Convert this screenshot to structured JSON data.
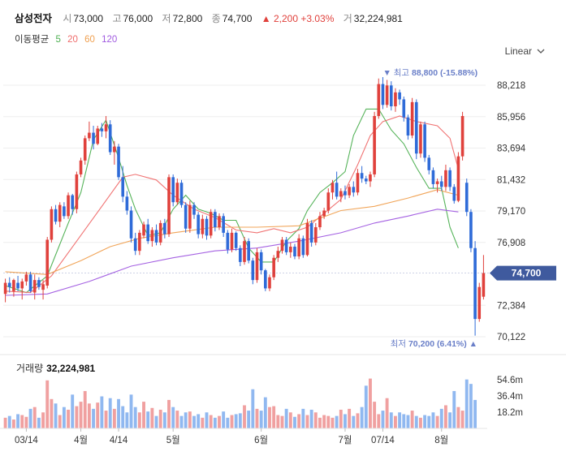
{
  "header": {
    "name": "삼성전자",
    "open_label": "시",
    "open": "73,000",
    "high_label": "고",
    "high": "76,000",
    "low_label": "저",
    "low": "72,800",
    "close_label": "종",
    "close": "74,700",
    "change_arrow": "▲",
    "change": "2,200",
    "change_pct": "+3.03%",
    "volume_label": "거",
    "volume": "32,224,981"
  },
  "moving_avg": {
    "label": "이동평균",
    "items": [
      {
        "period": "5",
        "color": "#4caf50"
      },
      {
        "period": "20",
        "color": "#ef6b6b"
      },
      {
        "period": "60",
        "color": "#f0a050"
      },
      {
        "period": "120",
        "color": "#a05ae0"
      }
    ]
  },
  "scale_selector": {
    "label": "Linear"
  },
  "chart_data": {
    "type": "candlestick",
    "y_ticks": [
      "88,218",
      "85,956",
      "83,694",
      "81,432",
      "79,170",
      "76,908",
      "74,700",
      "72,384",
      "70,122"
    ],
    "ylim": [
      70122,
      88218
    ],
    "current_price": "74,700",
    "current_price_value": 74700,
    "max_marker": {
      "label": "최고",
      "value": "88,800",
      "pct": "(-15.88%)",
      "arrow": "▼",
      "value_num": 88800
    },
    "min_marker": {
      "label": "최저",
      "value": "70,200",
      "pct": "(6.41%)",
      "arrow": "▲",
      "value_num": 70200
    },
    "x_labels": [
      {
        "label": "03/14",
        "index": 5
      },
      {
        "label": "4월",
        "index": 18
      },
      {
        "label": "4/14",
        "index": 27
      },
      {
        "label": "5월",
        "index": 40
      },
      {
        "label": "6월",
        "index": 61
      },
      {
        "label": "7월",
        "index": 81
      },
      {
        "label": "07/14",
        "index": 90
      },
      {
        "label": "8월",
        "index": 104
      }
    ],
    "series": [
      {
        "name": "MA5",
        "color": "#4caf50",
        "points": [
          [
            0,
            73.8
          ],
          [
            5,
            73.3
          ],
          [
            10,
            74.5
          ],
          [
            15,
            78.3
          ],
          [
            18,
            80.5
          ],
          [
            21,
            84.3
          ],
          [
            24,
            85.7
          ],
          [
            27,
            83.0
          ],
          [
            29,
            81.0
          ],
          [
            31,
            79.3
          ],
          [
            34,
            77.4
          ],
          [
            37,
            77.6
          ],
          [
            40,
            79.3
          ],
          [
            43,
            80.3
          ],
          [
            46,
            79.3
          ],
          [
            49,
            79.0
          ],
          [
            52,
            78.5
          ],
          [
            55,
            78.5
          ],
          [
            58,
            76.5
          ],
          [
            61,
            75.5
          ],
          [
            64,
            75.5
          ],
          [
            67,
            77.0
          ],
          [
            70,
            77.9
          ],
          [
            72,
            79.2
          ],
          [
            75,
            80.5
          ],
          [
            78,
            81.2
          ],
          [
            81,
            82.0
          ],
          [
            83,
            84.6
          ],
          [
            86,
            86.5
          ],
          [
            89,
            86.5
          ],
          [
            92,
            85.0
          ],
          [
            95,
            84.0
          ],
          [
            98,
            82.3
          ],
          [
            101,
            80.8
          ],
          [
            104,
            80.8
          ],
          [
            106,
            78.0
          ],
          [
            108,
            76.5
          ]
        ]
      },
      {
        "name": "MA20",
        "color": "#ef6b6b",
        "points": [
          [
            0,
            73.4
          ],
          [
            6,
            73.3
          ],
          [
            11,
            74.5
          ],
          [
            17,
            77.0
          ],
          [
            23,
            79.5
          ],
          [
            28,
            81.6
          ],
          [
            31,
            81.8
          ],
          [
            36,
            81.4
          ],
          [
            40,
            80.3
          ],
          [
            45,
            79.3
          ],
          [
            50,
            78.7
          ],
          [
            55,
            77.8
          ],
          [
            60,
            77.6
          ],
          [
            64,
            77.9
          ],
          [
            68,
            77.6
          ],
          [
            72,
            78.0
          ],
          [
            76,
            79.0
          ],
          [
            80,
            80.0
          ],
          [
            84,
            82.5
          ],
          [
            87,
            84.6
          ],
          [
            90,
            85.6
          ],
          [
            94,
            86.0
          ],
          [
            98,
            85.6
          ],
          [
            103,
            85.3
          ],
          [
            106,
            84.4
          ],
          [
            108,
            82.2
          ]
        ]
      },
      {
        "name": "MA60",
        "color": "#f0a050",
        "points": [
          [
            0,
            74.8
          ],
          [
            10,
            74.6
          ],
          [
            18,
            75.6
          ],
          [
            25,
            76.6
          ],
          [
            32,
            77.2
          ],
          [
            40,
            77.6
          ],
          [
            50,
            78.0
          ],
          [
            60,
            78.0
          ],
          [
            70,
            78.1
          ],
          [
            80,
            79.2
          ],
          [
            88,
            79.5
          ],
          [
            96,
            80.1
          ],
          [
            103,
            80.7
          ],
          [
            108,
            80.3
          ]
        ]
      },
      {
        "name": "MA120",
        "color": "#a05ae0",
        "points": [
          [
            0,
            73.1
          ],
          [
            10,
            73.2
          ],
          [
            20,
            74.1
          ],
          [
            30,
            75.2
          ],
          [
            40,
            75.8
          ],
          [
            50,
            76.3
          ],
          [
            60,
            76.5
          ],
          [
            70,
            77.0
          ],
          [
            80,
            77.6
          ],
          [
            88,
            78.3
          ],
          [
            96,
            78.8
          ],
          [
            103,
            79.3
          ],
          [
            108,
            79.1
          ]
        ]
      }
    ],
    "candles": [
      [
        73.2,
        74.3,
        72.6,
        74.0
      ],
      [
        74.0,
        74.4,
        73.3,
        73.7
      ],
      [
        73.4,
        74.3,
        73.0,
        74.2
      ],
      [
        74.0,
        74.5,
        73.4,
        73.6
      ],
      [
        73.6,
        74.3,
        72.8,
        74.1
      ],
      [
        74.1,
        74.8,
        73.8,
        74.6
      ],
      [
        74.6,
        74.8,
        73.3,
        73.4
      ],
      [
        73.3,
        74.6,
        72.8,
        74.2
      ],
      [
        74.2,
        74.4,
        73.5,
        73.7
      ],
      [
        73.5,
        74.2,
        72.8,
        73.9
      ],
      [
        73.8,
        77.3,
        73.6,
        77.1
      ],
      [
        77.1,
        79.5,
        76.9,
        79.3
      ],
      [
        79.3,
        79.6,
        78.2,
        78.4
      ],
      [
        78.4,
        79.8,
        78.0,
        79.6
      ],
      [
        79.5,
        79.8,
        78.6,
        78.8
      ],
      [
        78.8,
        80.5,
        78.6,
        80.3
      ],
      [
        80.3,
        80.4,
        78.9,
        79.3
      ],
      [
        79.3,
        82.0,
        79.0,
        81.8
      ],
      [
        81.8,
        83.0,
        81.6,
        82.8
      ],
      [
        82.8,
        84.6,
        82.5,
        84.4
      ],
      [
        84.4,
        85.6,
        84.2,
        84.8
      ],
      [
        84.8,
        85.3,
        83.6,
        84.0
      ],
      [
        84.0,
        85.3,
        83.9,
        85.1
      ],
      [
        85.1,
        85.5,
        84.5,
        84.9
      ],
      [
        84.9,
        86.0,
        84.4,
        85.4
      ],
      [
        85.4,
        85.7,
        83.2,
        83.4
      ],
      [
        83.4,
        84.2,
        82.5,
        83.8
      ],
      [
        83.8,
        84.0,
        81.4,
        81.6
      ],
      [
        81.6,
        82.4,
        79.8,
        80.2
      ],
      [
        80.2,
        80.6,
        78.9,
        79.2
      ],
      [
        79.2,
        79.5,
        76.9,
        77.2
      ],
      [
        77.2,
        77.6,
        76.0,
        76.3
      ],
      [
        76.3,
        77.8,
        76.0,
        77.6
      ],
      [
        77.4,
        78.4,
        77.2,
        78.2
      ],
      [
        78.2,
        78.6,
        76.8,
        77.0
      ],
      [
        77.0,
        78.0,
        76.6,
        77.8
      ],
      [
        77.8,
        78.2,
        76.7,
        76.9
      ],
      [
        76.9,
        78.5,
        76.7,
        78.3
      ],
      [
        78.3,
        78.6,
        77.2,
        77.5
      ],
      [
        77.5,
        81.8,
        77.3,
        81.6
      ],
      [
        81.6,
        81.8,
        79.5,
        79.8
      ],
      [
        79.8,
        81.5,
        79.6,
        81.2
      ],
      [
        81.2,
        81.4,
        79.4,
        79.6
      ],
      [
        79.6,
        79.8,
        77.6,
        77.9
      ],
      [
        77.9,
        79.9,
        77.6,
        79.6
      ],
      [
        79.6,
        79.8,
        78.6,
        78.9
      ],
      [
        78.9,
        79.1,
        77.2,
        77.5
      ],
      [
        77.5,
        78.9,
        77.2,
        78.6
      ],
      [
        78.6,
        78.8,
        77.1,
        77.4
      ],
      [
        77.4,
        79.3,
        77.2,
        79.1
      ],
      [
        79.1,
        79.3,
        77.7,
        78.0
      ],
      [
        78.0,
        79.0,
        77.8,
        78.8
      ],
      [
        78.8,
        79.0,
        77.3,
        77.6
      ],
      [
        77.6,
        77.8,
        76.1,
        76.4
      ],
      [
        76.4,
        77.9,
        76.2,
        77.6
      ],
      [
        77.6,
        77.7,
        76.3,
        76.5
      ],
      [
        76.5,
        76.7,
        75.2,
        75.5
      ],
      [
        75.5,
        77.3,
        75.3,
        77.0
      ],
      [
        77.0,
        77.2,
        75.4,
        75.6
      ],
      [
        75.6,
        75.8,
        73.9,
        74.2
      ],
      [
        74.2,
        76.5,
        74.0,
        76.2
      ],
      [
        76.2,
        76.4,
        74.6,
        74.9
      ],
      [
        74.9,
        75.0,
        73.4,
        73.6
      ],
      [
        73.6,
        74.6,
        73.4,
        74.4
      ],
      [
        74.4,
        76.0,
        74.2,
        75.8
      ],
      [
        75.8,
        76.6,
        75.5,
        76.3
      ],
      [
        76.3,
        77.3,
        76.1,
        77.1
      ],
      [
        77.1,
        77.3,
        76.0,
        76.2
      ],
      [
        76.2,
        76.9,
        75.8,
        76.6
      ],
      [
        76.6,
        76.8,
        75.7,
        75.9
      ],
      [
        75.9,
        77.5,
        75.7,
        77.2
      ],
      [
        77.2,
        77.4,
        75.8,
        76.0
      ],
      [
        76.0,
        78.6,
        75.9,
        78.3
      ],
      [
        78.3,
        78.5,
        76.6,
        76.9
      ],
      [
        76.9,
        78.3,
        76.7,
        78.0
      ],
      [
        78.0,
        79.1,
        77.8,
        78.8
      ],
      [
        78.8,
        79.4,
        78.6,
        79.2
      ],
      [
        79.2,
        80.8,
        79.0,
        80.5
      ],
      [
        80.5,
        81.4,
        80.0,
        81.2
      ],
      [
        81.2,
        82.0,
        80.0,
        80.2
      ],
      [
        80.2,
        80.8,
        79.8,
        80.6
      ],
      [
        80.6,
        81.0,
        80.0,
        80.3
      ],
      [
        80.3,
        81.1,
        80.1,
        80.9
      ],
      [
        80.9,
        81.3,
        80.2,
        80.5
      ],
      [
        80.5,
        82.2,
        80.3,
        81.9
      ],
      [
        81.9,
        82.4,
        81.2,
        81.5
      ],
      [
        81.5,
        81.7,
        81.1,
        81.3
      ],
      [
        81.3,
        82.0,
        80.9,
        81.8
      ],
      [
        81.8,
        86.3,
        81.6,
        86.0
      ],
      [
        86.0,
        88.7,
        85.8,
        88.3
      ],
      [
        88.3,
        88.8,
        86.5,
        86.8
      ],
      [
        86.8,
        88.6,
        86.6,
        88.2
      ],
      [
        88.2,
        88.5,
        86.4,
        86.7
      ],
      [
        86.7,
        88.0,
        86.3,
        87.7
      ],
      [
        87.7,
        87.9,
        86.8,
        87.2
      ],
      [
        87.2,
        87.4,
        85.6,
        85.9
      ],
      [
        85.9,
        86.1,
        84.3,
        84.6
      ],
      [
        84.6,
        87.3,
        84.4,
        87.0
      ],
      [
        87.0,
        87.2,
        82.9,
        83.3
      ],
      [
        83.3,
        85.6,
        83.0,
        85.4
      ],
      [
        85.4,
        85.6,
        82.7,
        83.0
      ],
      [
        83.0,
        83.2,
        81.8,
        82.1
      ],
      [
        82.1,
        82.3,
        80.8,
        81.1
      ],
      [
        81.1,
        81.5,
        80.5,
        81.3
      ],
      [
        81.3,
        81.7,
        80.6,
        80.9
      ],
      [
        80.9,
        82.5,
        80.6,
        82.1
      ],
      [
        82.1,
        82.3,
        80.6,
        80.9
      ],
      [
        80.9,
        81.1,
        79.7,
        79.9
      ],
      [
        79.9,
        83.4,
        79.8,
        83.1
      ],
      [
        83.1,
        86.3,
        82.8,
        86.0
      ],
      [
        81.2,
        81.5,
        78.8,
        79.1
      ],
      [
        79.1,
        79.3,
        76.2,
        76.5
      ],
      [
        76.5,
        77.0,
        70.2,
        71.4
      ],
      [
        71.4,
        74.0,
        71.2,
        73.7
      ],
      [
        73.0,
        76.0,
        72.8,
        74.7
      ]
    ],
    "volume": {
      "title": "거래량",
      "value": "32,224,981",
      "ticks": [
        "54.6m",
        "36.4m",
        "18.2m"
      ],
      "tick_values": [
        54.6,
        36.4,
        18.2
      ],
      "max": 62,
      "values": [
        12,
        14,
        10,
        16,
        15,
        13,
        22,
        24,
        12,
        18,
        54,
        33,
        28,
        15,
        24,
        21,
        38,
        25,
        30,
        42,
        28,
        22,
        29,
        36,
        20,
        34,
        22,
        33,
        25,
        18,
        38,
        24,
        18,
        30,
        19,
        23,
        14,
        21,
        18,
        32,
        24,
        20,
        14,
        18,
        19,
        14,
        16,
        12,
        18,
        15,
        12,
        14,
        19,
        12,
        15,
        16,
        17,
        26,
        20,
        44,
        22,
        20,
        35,
        24,
        25,
        15,
        14,
        22,
        18,
        13,
        16,
        22,
        15,
        21,
        18,
        12,
        15,
        14,
        12,
        14,
        21,
        16,
        22,
        14,
        17,
        24,
        48,
        56,
        30,
        16,
        20,
        34,
        18,
        14,
        18,
        16,
        15,
        20,
        14,
        12,
        15,
        14,
        18,
        14,
        22,
        26,
        18,
        42,
        24,
        20,
        55,
        50,
        32
      ]
    }
  }
}
